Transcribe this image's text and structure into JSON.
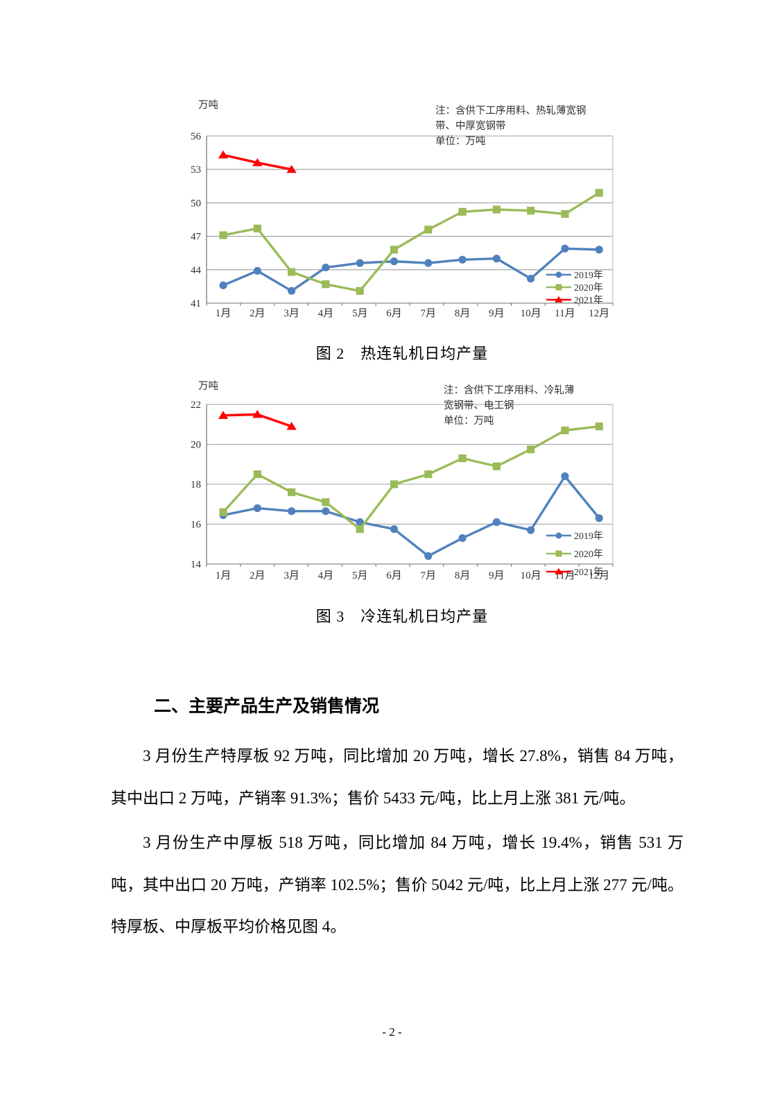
{
  "page": {
    "footer": "- 2 -"
  },
  "section": {
    "heading": "二、主要产品生产及销售情况",
    "paragraphs": [
      "3 月份生产特厚板 92 万吨，同比增加 20 万吨，增长 27.8%，销售 84 万吨，其中出口 2 万吨，产销率 91.3%；售价 5433 元/吨，比上月上涨 381 元/吨。",
      "3 月份生产中厚板 518 万吨，同比增加 84 万吨，增长 19.4%，销售 531 万吨，其中出口 20 万吨，产销率 102.5%；售价 5042 元/吨，比上月上涨 277 元/吨。特厚板、中厚板平均价格见图 4。"
    ]
  },
  "chart_data": [
    {
      "type": "line",
      "caption": "图 2　热连轧机日均产量",
      "unit_label": "万吨",
      "note_lines": [
        "注：含供下工序用料、热轧薄宽钢",
        "带、中厚宽钢带",
        "单位：万吨"
      ],
      "categories": [
        "1月",
        "2月",
        "3月",
        "4月",
        "5月",
        "6月",
        "7月",
        "8月",
        "9月",
        "10月",
        "11月",
        "12月"
      ],
      "ylim": [
        41,
        56
      ],
      "yticks": [
        41,
        44,
        47,
        50,
        53,
        56
      ],
      "grid": true,
      "legend_position": "bottom-right-inside",
      "series": [
        {
          "name": "2019年",
          "color": "#4F81BD",
          "marker": "circle",
          "values": [
            42.6,
            43.9,
            42.1,
            44.2,
            44.6,
            44.75,
            44.6,
            44.9,
            45.0,
            43.2,
            45.9,
            45.8
          ]
        },
        {
          "name": "2020年",
          "color": "#9BBB59",
          "marker": "square",
          "values": [
            47.1,
            47.7,
            43.8,
            42.7,
            42.1,
            45.8,
            47.6,
            49.2,
            49.4,
            49.3,
            49.0,
            50.9
          ]
        },
        {
          "name": "2021年",
          "color": "#FF0000",
          "marker": "triangle",
          "values": [
            54.3,
            53.6,
            53.0
          ]
        }
      ]
    },
    {
      "type": "line",
      "caption": "图 3　冷连轧机日均产量",
      "unit_label": "万吨",
      "note_lines": [
        "注：含供下工序用料、冷轧薄",
        "宽钢带、电工钢",
        "单位：万吨"
      ],
      "categories": [
        "1月",
        "2月",
        "3月",
        "4月",
        "5月",
        "6月",
        "7月",
        "8月",
        "9月",
        "10月",
        "11月",
        "12月"
      ],
      "ylim": [
        14,
        22
      ],
      "yticks": [
        14,
        16,
        18,
        20,
        22
      ],
      "grid": true,
      "legend_position": "bottom-right-inside",
      "series": [
        {
          "name": "2019年",
          "color": "#4F81BD",
          "marker": "circle",
          "values": [
            16.45,
            16.8,
            16.65,
            16.65,
            16.1,
            15.75,
            14.4,
            15.3,
            16.1,
            15.7,
            18.4,
            16.3
          ]
        },
        {
          "name": "2020年",
          "color": "#9BBB59",
          "marker": "square",
          "values": [
            16.6,
            18.5,
            17.6,
            17.1,
            15.75,
            18.0,
            18.5,
            19.3,
            18.9,
            19.75,
            20.7,
            20.9
          ]
        },
        {
          "name": "2021年",
          "color": "#FF0000",
          "marker": "triangle",
          "values": [
            21.45,
            21.5,
            20.9
          ]
        }
      ]
    }
  ]
}
